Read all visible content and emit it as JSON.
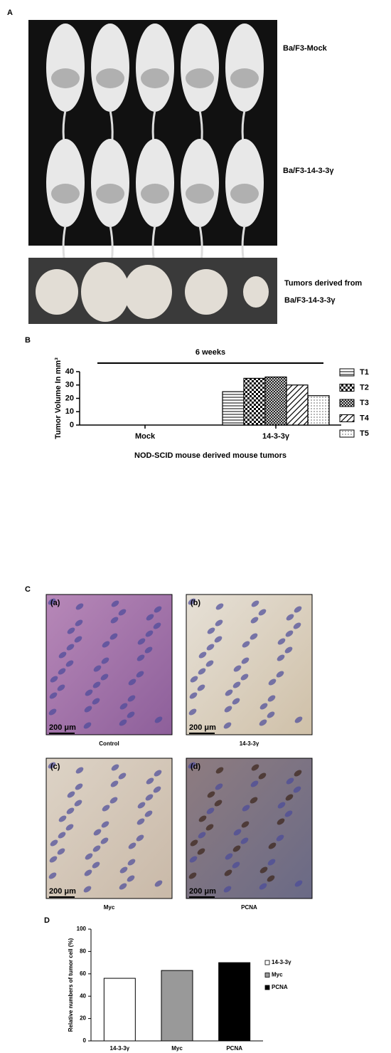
{
  "panel_a": {
    "label": "A",
    "rows": [
      "Ba/F3-Mock",
      "Ba/F3-14-3-3γ"
    ],
    "tumors_label": [
      "Tumors derived from",
      "Ba/F3-14-3-3γ"
    ]
  },
  "panel_b": {
    "label": "B"
  },
  "panel_c": {
    "label": "C",
    "images": [
      {
        "tag": "(a)",
        "scale": "200 μm",
        "caption": "Control"
      },
      {
        "tag": "(b)",
        "scale": "200 μm",
        "caption": "14-3-3γ"
      },
      {
        "tag": "(c)",
        "scale": "200 μm",
        "caption": "Myc"
      },
      {
        "tag": "(d)",
        "scale": "200 μm",
        "caption": "PCNA"
      }
    ]
  },
  "panel_d": {
    "label": "D"
  },
  "chart_data": [
    {
      "type": "bar",
      "title": "6 weeks",
      "ylabel": "Tumor Volume In mm³",
      "xlabel": "NOD-SCID mouse derived mouse tumors",
      "categories": [
        "Mock",
        "14-3-3γ"
      ],
      "series": [
        {
          "name": "T1",
          "pattern": "hlines",
          "values": [
            0,
            25
          ]
        },
        {
          "name": "T2",
          "pattern": "checker",
          "values": [
            0,
            35
          ]
        },
        {
          "name": "T3",
          "pattern": "crosshatch",
          "values": [
            0,
            36
          ]
        },
        {
          "name": "T4",
          "pattern": "diag",
          "values": [
            0,
            30
          ]
        },
        {
          "name": "T5",
          "pattern": "dots",
          "values": [
            0,
            22
          ]
        }
      ],
      "ylim": [
        0,
        40
      ],
      "yticks": [
        0,
        10,
        20,
        30,
        40
      ],
      "legend": "right"
    },
    {
      "type": "bar",
      "ylabel": "Relative numbers of tumor cell (%)",
      "categories": [
        "14-3-3γ",
        "Myc",
        "PCNA"
      ],
      "values": [
        56,
        63,
        70
      ],
      "colors": [
        "#ffffff",
        "#999999",
        "#000000"
      ],
      "ylim": [
        0,
        100
      ],
      "yticks": [
        0,
        20,
        40,
        60,
        80,
        100
      ],
      "legend": "right"
    }
  ]
}
